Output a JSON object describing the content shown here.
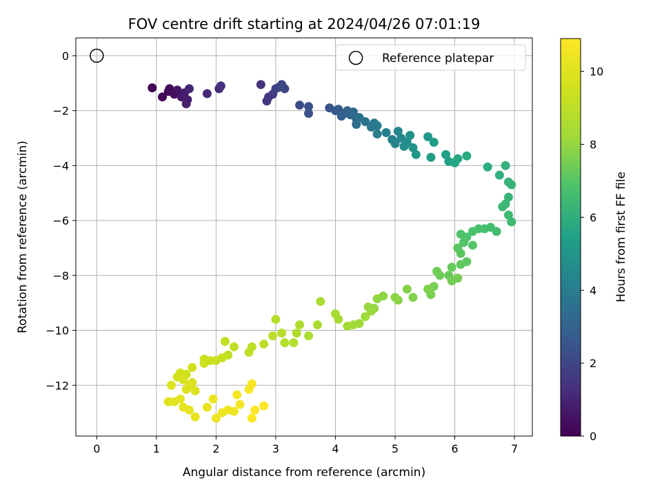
{
  "chart_data": {
    "type": "scatter",
    "title": "FOV centre drift starting at 2024/04/26 07:01:19",
    "xlabel": "Angular distance from reference (arcmin)",
    "ylabel": "Rotation from reference (arcmin)",
    "xlim": [
      -0.35,
      7.3
    ],
    "ylim": [
      -13.85,
      0.65
    ],
    "xticks": [
      "0",
      "1",
      "2",
      "3",
      "4",
      "5",
      "6",
      "7"
    ],
    "yticks": [
      "0",
      "−2",
      "−4",
      "−6",
      "−8",
      "−10",
      "−12"
    ],
    "grid": true,
    "legend": {
      "position": "top-right",
      "label": "Reference platepar"
    },
    "reference_point": {
      "x": 0,
      "y": 0
    },
    "colorbar": {
      "label": "Hours from first FF file",
      "colormap": "viridis",
      "range": [
        0,
        10.9
      ],
      "ticks": [
        "0",
        "2",
        "4",
        "6",
        "8",
        "10"
      ]
    },
    "series": [
      {
        "color_by": "hours",
        "points": [
          [
            0.93,
            -1.17,
            0.0
          ],
          [
            1.1,
            -1.5,
            0.1
          ],
          [
            1.2,
            -1.3,
            0.2
          ],
          [
            1.22,
            -1.2,
            0.3
          ],
          [
            1.3,
            -1.4,
            0.4
          ],
          [
            1.35,
            -1.25,
            0.5
          ],
          [
            1.42,
            -1.5,
            0.6
          ],
          [
            1.47,
            -1.35,
            0.7
          ],
          [
            1.52,
            -1.6,
            0.8
          ],
          [
            1.5,
            -1.75,
            0.9
          ],
          [
            1.55,
            -1.2,
            1.0
          ],
          [
            1.85,
            -1.38,
            1.1
          ],
          [
            2.05,
            -1.2,
            1.2
          ],
          [
            2.08,
            -1.1,
            1.3
          ],
          [
            2.75,
            -1.05,
            1.4
          ],
          [
            2.85,
            -1.65,
            1.5
          ],
          [
            2.88,
            -1.5,
            1.6
          ],
          [
            2.95,
            -1.4,
            1.7
          ],
          [
            3.0,
            -1.2,
            1.8
          ],
          [
            3.05,
            -1.15,
            1.9
          ],
          [
            3.1,
            -1.05,
            2.0
          ],
          [
            3.15,
            -1.2,
            2.1
          ],
          [
            3.4,
            -1.8,
            2.2
          ],
          [
            3.55,
            -1.85,
            2.3
          ],
          [
            3.55,
            -2.1,
            2.4
          ],
          [
            3.9,
            -1.9,
            2.5
          ],
          [
            4.0,
            -2.0,
            2.6
          ],
          [
            4.05,
            -1.95,
            2.7
          ],
          [
            4.1,
            -2.2,
            2.8
          ],
          [
            4.15,
            -2.1,
            2.9
          ],
          [
            4.2,
            -2.0,
            3.0
          ],
          [
            4.25,
            -2.15,
            3.1
          ],
          [
            4.3,
            -2.05,
            3.2
          ],
          [
            4.35,
            -2.3,
            3.3
          ],
          [
            4.35,
            -2.5,
            3.4
          ],
          [
            4.4,
            -2.25,
            3.5
          ],
          [
            4.5,
            -2.4,
            3.6
          ],
          [
            4.6,
            -2.6,
            3.7
          ],
          [
            4.65,
            -2.45,
            3.8
          ],
          [
            4.7,
            -2.55,
            3.9
          ],
          [
            4.7,
            -2.85,
            4.0
          ],
          [
            4.85,
            -2.8,
            4.1
          ],
          [
            4.95,
            -3.05,
            4.2
          ],
          [
            5.0,
            -3.2,
            4.3
          ],
          [
            5.05,
            -2.75,
            4.4
          ],
          [
            5.1,
            -3.0,
            4.5
          ],
          [
            5.15,
            -3.3,
            4.6
          ],
          [
            5.2,
            -3.15,
            4.7
          ],
          [
            5.25,
            -2.9,
            4.8
          ],
          [
            5.3,
            -3.35,
            4.9
          ],
          [
            5.35,
            -3.6,
            5.0
          ],
          [
            5.55,
            -2.95,
            5.1
          ],
          [
            5.6,
            -3.7,
            5.2
          ],
          [
            5.65,
            -3.15,
            5.3
          ],
          [
            5.85,
            -3.6,
            5.4
          ],
          [
            5.9,
            -3.85,
            5.5
          ],
          [
            6.0,
            -3.9,
            5.6
          ],
          [
            6.05,
            -3.75,
            5.7
          ],
          [
            6.2,
            -3.65,
            5.8
          ],
          [
            6.55,
            -4.05,
            5.9
          ],
          [
            6.75,
            -4.35,
            6.0
          ],
          [
            6.85,
            -4.0,
            6.1
          ],
          [
            6.9,
            -4.6,
            6.15
          ],
          [
            6.95,
            -4.7,
            6.2
          ],
          [
            6.9,
            -5.15,
            6.3
          ],
          [
            6.85,
            -5.4,
            6.35
          ],
          [
            6.8,
            -5.5,
            6.4
          ],
          [
            6.9,
            -5.8,
            6.45
          ],
          [
            6.95,
            -6.05,
            6.5
          ],
          [
            6.7,
            -6.4,
            6.6
          ],
          [
            6.6,
            -6.25,
            6.65
          ],
          [
            6.5,
            -6.3,
            6.7
          ],
          [
            6.4,
            -6.3,
            6.75
          ],
          [
            6.3,
            -6.4,
            6.8
          ],
          [
            6.2,
            -6.6,
            6.85
          ],
          [
            6.1,
            -6.5,
            6.9
          ],
          [
            6.15,
            -6.8,
            6.95
          ],
          [
            6.3,
            -6.9,
            7.0
          ],
          [
            6.05,
            -7.0,
            7.05
          ],
          [
            6.1,
            -7.2,
            7.1
          ],
          [
            6.2,
            -7.5,
            7.15
          ],
          [
            6.1,
            -7.6,
            7.2
          ],
          [
            5.95,
            -7.7,
            7.25
          ],
          [
            5.9,
            -8.0,
            7.3
          ],
          [
            5.75,
            -8.0,
            7.35
          ],
          [
            5.7,
            -7.85,
            7.4
          ],
          [
            5.95,
            -8.2,
            7.45
          ],
          [
            6.05,
            -8.1,
            7.5
          ],
          [
            5.65,
            -8.4,
            7.55
          ],
          [
            5.6,
            -8.7,
            7.6
          ],
          [
            5.55,
            -8.5,
            7.65
          ],
          [
            5.3,
            -8.8,
            7.7
          ],
          [
            5.2,
            -8.5,
            7.75
          ],
          [
            5.05,
            -8.9,
            7.8
          ],
          [
            5.0,
            -8.8,
            7.85
          ],
          [
            4.8,
            -8.75,
            7.9
          ],
          [
            4.7,
            -8.85,
            7.95
          ],
          [
            4.65,
            -9.2,
            8.0
          ],
          [
            4.55,
            -9.15,
            8.05
          ],
          [
            4.6,
            -9.3,
            8.1
          ],
          [
            4.5,
            -9.5,
            8.15
          ],
          [
            4.4,
            -9.75,
            8.2
          ],
          [
            4.3,
            -9.8,
            8.25
          ],
          [
            4.2,
            -9.85,
            8.3
          ],
          [
            4.05,
            -9.6,
            8.35
          ],
          [
            4.0,
            -9.4,
            8.4
          ],
          [
            3.75,
            -8.95,
            8.45
          ],
          [
            3.7,
            -9.8,
            8.5
          ],
          [
            3.55,
            -10.2,
            8.55
          ],
          [
            3.4,
            -9.8,
            8.6
          ],
          [
            3.35,
            -10.1,
            8.65
          ],
          [
            3.3,
            -10.45,
            8.7
          ],
          [
            3.15,
            -10.45,
            8.75
          ],
          [
            3.1,
            -10.1,
            8.8
          ],
          [
            3.0,
            -9.6,
            8.85
          ],
          [
            2.95,
            -10.2,
            8.9
          ],
          [
            2.8,
            -10.5,
            8.95
          ],
          [
            2.6,
            -10.6,
            9.0
          ],
          [
            2.55,
            -10.8,
            9.05
          ],
          [
            2.3,
            -10.6,
            9.1
          ],
          [
            2.2,
            -10.9,
            9.15
          ],
          [
            2.15,
            -10.4,
            9.2
          ],
          [
            2.1,
            -11.0,
            9.25
          ],
          [
            2.0,
            -11.1,
            9.3
          ],
          [
            1.9,
            -11.1,
            9.35
          ],
          [
            1.8,
            -11.2,
            9.4
          ],
          [
            1.8,
            -11.05,
            9.45
          ],
          [
            1.6,
            -11.35,
            9.5
          ],
          [
            1.5,
            -11.6,
            9.55
          ],
          [
            1.4,
            -11.55,
            9.6
          ],
          [
            1.35,
            -11.7,
            9.65
          ],
          [
            1.45,
            -11.8,
            9.7
          ],
          [
            1.55,
            -12.0,
            9.75
          ],
          [
            1.6,
            -11.9,
            9.8
          ],
          [
            1.65,
            -12.2,
            9.85
          ],
          [
            1.5,
            -12.15,
            9.9
          ],
          [
            1.25,
            -12.0,
            9.95
          ],
          [
            1.2,
            -12.6,
            10.0
          ],
          [
            1.3,
            -12.6,
            10.05
          ],
          [
            1.4,
            -12.5,
            10.1
          ],
          [
            1.45,
            -12.8,
            10.15
          ],
          [
            1.55,
            -12.9,
            10.2
          ],
          [
            1.65,
            -13.15,
            10.25
          ],
          [
            1.85,
            -12.8,
            10.3
          ],
          [
            1.95,
            -12.5,
            10.35
          ],
          [
            2.0,
            -13.2,
            10.4
          ],
          [
            2.1,
            -13.0,
            10.45
          ],
          [
            2.2,
            -12.9,
            10.5
          ],
          [
            2.3,
            -12.95,
            10.55
          ],
          [
            2.4,
            -12.7,
            10.6
          ],
          [
            2.35,
            -12.35,
            10.65
          ],
          [
            2.55,
            -12.15,
            10.7
          ],
          [
            2.6,
            -11.95,
            10.75
          ],
          [
            2.6,
            -13.2,
            10.8
          ],
          [
            2.65,
            -12.9,
            10.85
          ],
          [
            2.8,
            -12.75,
            10.9
          ]
        ]
      }
    ]
  }
}
